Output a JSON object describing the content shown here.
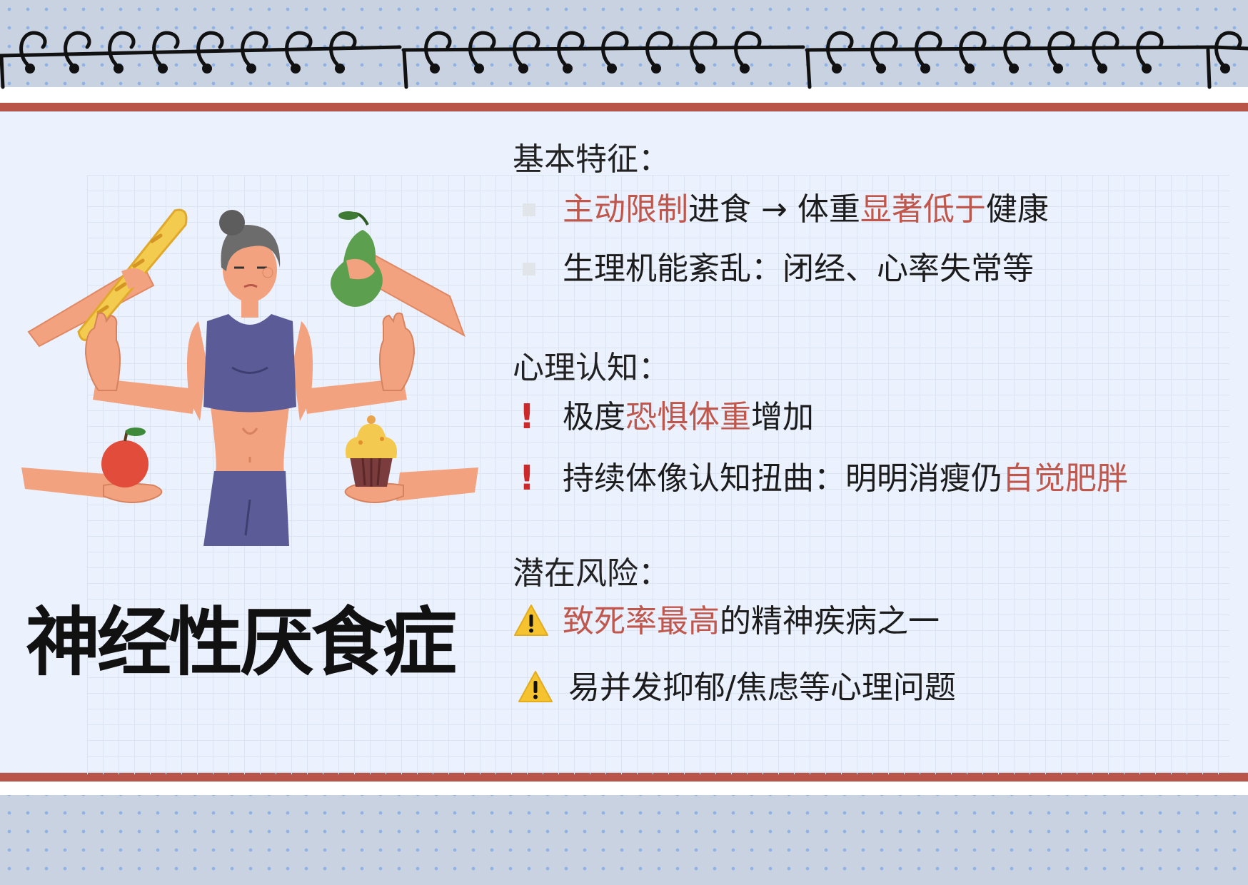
{
  "colors": {
    "accent_red": "#b95548",
    "highlight_text": "#c0574c",
    "panel_bg": "#ebf1fd",
    "dotted_bg": "#c8d2e1",
    "exclamation": "#cc2a2a",
    "warning_yellow": "#f5c330"
  },
  "title": "神经性厌食症",
  "sections": {
    "basic": {
      "heading": "基本特征：",
      "bullet_icon": "square-bullet-icon",
      "items": [
        {
          "hl1": "主动限制",
          "t1": "进食 → 体重",
          "hl2": "显著低于",
          "t2": "健康"
        },
        {
          "text": "生理机能紊乱：闭经、心率失常等"
        }
      ]
    },
    "cognition": {
      "heading": "心理认知：",
      "bullet_icon": "exclamation-icon",
      "items": [
        {
          "t1": "极度",
          "hl1": "恐惧体重",
          "t2": "增加"
        },
        {
          "t1": "持续体像认知扭曲：明明消瘦仍",
          "hl1": "自觉肥胖"
        }
      ]
    },
    "risk": {
      "heading": "潜在风险：",
      "bullet_icon": "warning-icon",
      "items": [
        {
          "hl1": "致死率最高",
          "t1": "的精神疾病之一"
        },
        {
          "text": "易并发抑郁/焦虑等心理问题"
        }
      ]
    }
  },
  "illustration": {
    "subject": "thin woman refusing food offered by hands",
    "items": [
      "baguette-icon",
      "pear-icon",
      "apple-icon",
      "cupcake-icon"
    ]
  }
}
